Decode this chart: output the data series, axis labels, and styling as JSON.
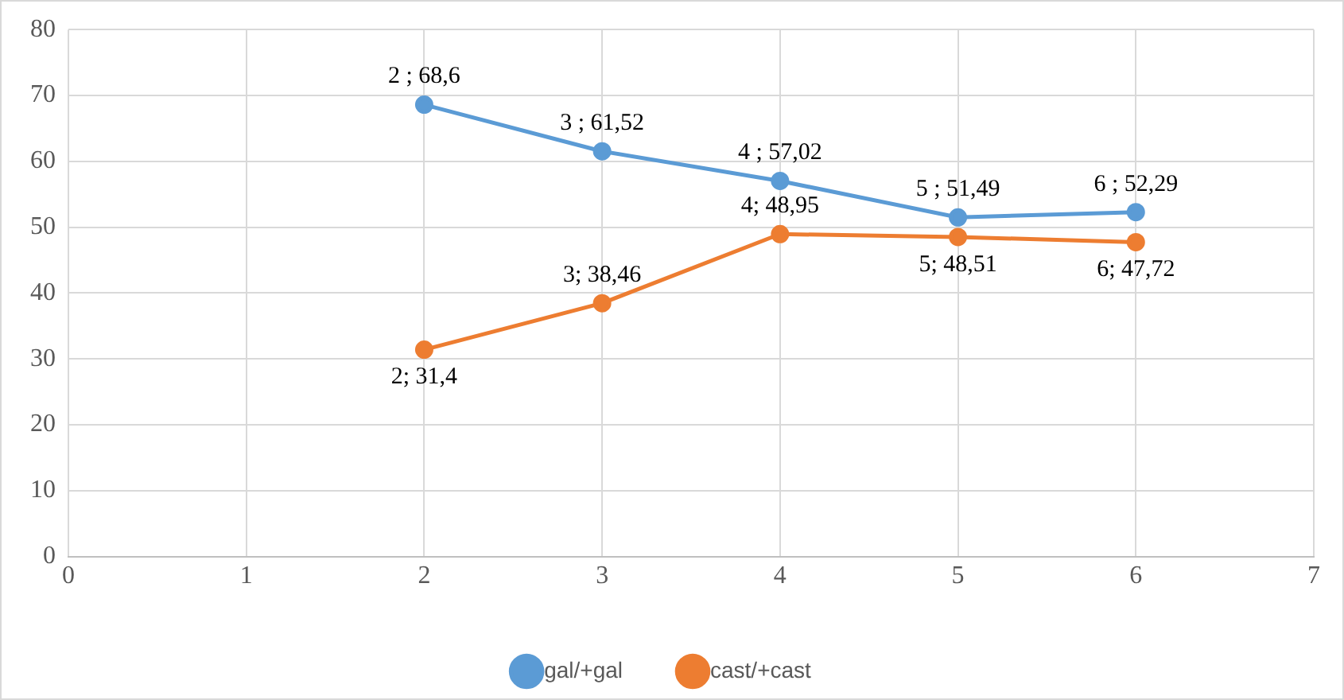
{
  "chart_data": {
    "type": "line",
    "x": [
      2,
      3,
      4,
      5,
      6
    ],
    "series": [
      {
        "name": "gal/+gal",
        "color": "#5b9bd5",
        "values": [
          68.6,
          61.52,
          57.02,
          51.49,
          52.29
        ],
        "value_labels": [
          "2 ; 68,6",
          "3 ; 61,52",
          "4 ; 57,02",
          "5 ; 51,49",
          "6 ; 52,29"
        ]
      },
      {
        "name": "cast/+cast",
        "color": "#ed7d31",
        "values": [
          31.4,
          38.46,
          48.95,
          48.51,
          47.72
        ],
        "value_labels": [
          "2; 31,4",
          "3; 38,46",
          "4; 48,95",
          "5; 48,51",
          "6; 47,72"
        ]
      }
    ],
    "xlim": [
      0,
      7
    ],
    "xticks": [
      0,
      1,
      2,
      3,
      4,
      5,
      6,
      7
    ],
    "ylim": [
      0,
      80
    ],
    "yticks": [
      0,
      10,
      20,
      30,
      40,
      50,
      60,
      70,
      80
    ],
    "grid": true,
    "legend": "bottom",
    "marker": "circle",
    "line_style": "solid"
  }
}
